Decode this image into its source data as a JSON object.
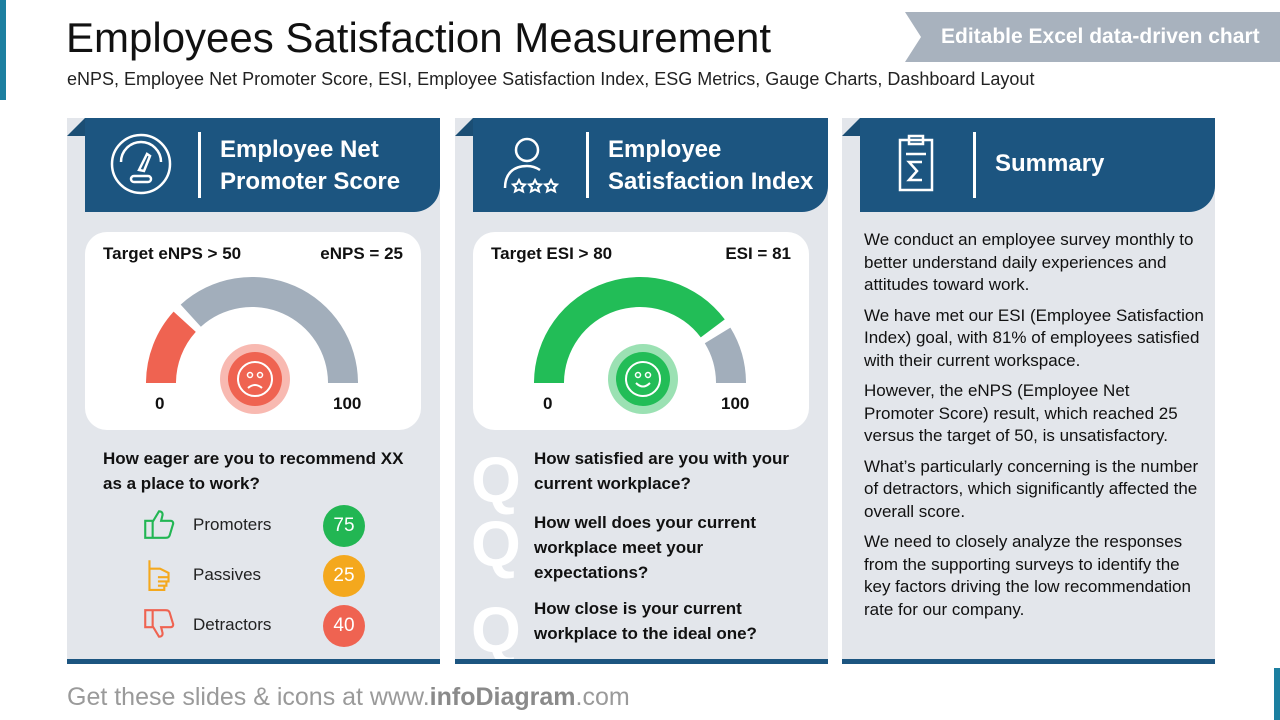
{
  "header": {
    "title": "Employees Satisfaction Measurement",
    "subtitle": "eNPS, Employee Net Promoter Score, ESI, Employee Satisfaction Index, ESG Metrics, Gauge Charts, Dashboard Layout",
    "banner": "Editable Excel data-driven chart"
  },
  "enps": {
    "title_line1": "Employee Net",
    "title_line2": "Promoter Score",
    "icon": "gauge-icon",
    "target": "Target eNPS > 50",
    "value_label": "eNPS = 25",
    "value": 25,
    "min": "0",
    "max": "100",
    "color": "#ef6351",
    "track": "#a2aebb",
    "face": "sad",
    "question_line1": "How eager are you to recommend XX",
    "question_line2": "as a place to work?",
    "legend": [
      {
        "label": "Promoters",
        "value": "75",
        "color": "#22b653",
        "icon": "thumbs-up-icon"
      },
      {
        "label": "Passives",
        "value": "25",
        "color": "#f4a81d",
        "icon": "thumb-side-icon"
      },
      {
        "label": "Detractors",
        "value": "40",
        "color": "#ef6351",
        "icon": "thumbs-down-icon"
      }
    ]
  },
  "esi": {
    "title_line1": "Employee",
    "title_line2": "Satisfaction Index",
    "icon": "user-rating-icon",
    "target": "Target ESI > 80",
    "value_label": "ESI = 81",
    "value": 81,
    "min": "0",
    "max": "100",
    "color": "#22bd57",
    "track": "#a2aebb",
    "face": "happy",
    "q_mark": "Q",
    "questions": [
      {
        "l1": "How satisfied are you with your",
        "l2": "current workplace?",
        "l3": ""
      },
      {
        "l1": "How well does your current",
        "l2": "workplace meet your",
        "l3": "expectations?"
      },
      {
        "l1": "How close is your current",
        "l2": "workplace to the ideal one?",
        "l3": ""
      }
    ]
  },
  "summary": {
    "title": "Summary",
    "icon": "clipboard-sum-icon",
    "paragraphs": [
      "We conduct an employee survey monthly to better understand daily experiences and attitudes toward work.",
      "We have met our ESI (Employee Satisfaction Index) goal, with 81% of employees satisfied with their current workspace.",
      "However, the eNPS (Employee Net Promoter Score) result, which reached 25 versus the target of 50, is unsatisfactory.",
      "What’s particularly concerning is the number of detractors, which significantly affected the overall score.",
      "We need to closely analyze the responses from the supporting surveys to identify the key factors driving the low recommendation rate for our company."
    ]
  },
  "footer": {
    "pre": "Get these slides & icons at www.",
    "brand": "infoDiagram",
    "post": ".com"
  }
}
